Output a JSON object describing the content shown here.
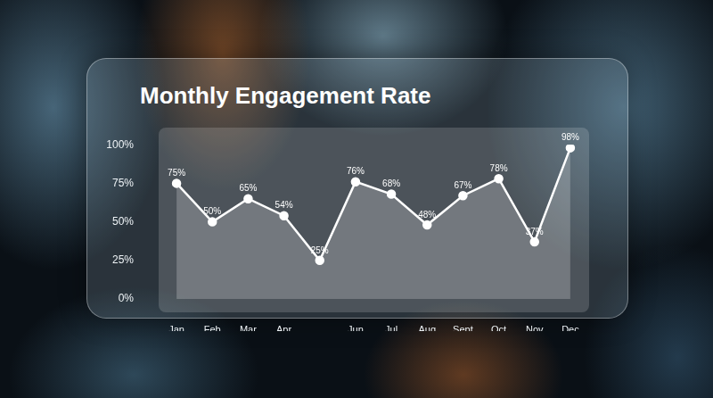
{
  "chart_data": {
    "type": "area",
    "title": "Monthly Engagement Rate",
    "categories": [
      "Jan",
      "Feb",
      "Mar",
      "Apr",
      null,
      "Jun",
      "Jul",
      "Aug",
      "Sept",
      "Oct",
      "Nov",
      "Dec"
    ],
    "values": [
      75,
      50,
      65,
      54,
      25,
      76,
      68,
      48,
      67,
      78,
      37,
      98
    ],
    "value_labels": [
      "75%",
      "50%",
      "65%",
      "54%",
      "25%",
      "76%",
      "68%",
      "48%",
      "67%",
      "78%",
      "37%",
      "98%"
    ],
    "color": "#ffffff",
    "marker": "circle",
    "ylim": [
      0,
      100
    ],
    "yticks": [
      {
        "value": 0,
        "label": "0%"
      },
      {
        "value": 25,
        "label": "25%"
      },
      {
        "value": 50,
        "label": "50%"
      },
      {
        "value": 75,
        "label": "75%"
      },
      {
        "value": 100,
        "label": "100%"
      }
    ],
    "grid": false,
    "data_labels": true
  }
}
